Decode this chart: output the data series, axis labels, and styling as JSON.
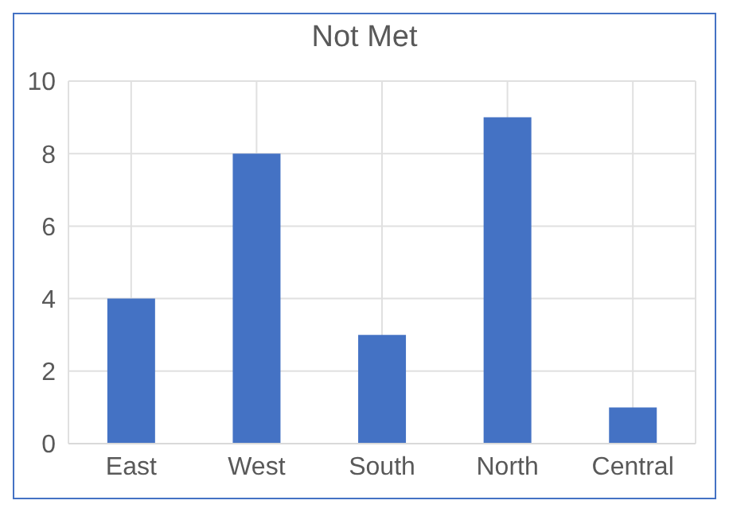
{
  "chart_data": {
    "type": "bar",
    "title": "Not Met",
    "categories": [
      "East",
      "West",
      "South",
      "North",
      "Central"
    ],
    "values": [
      4,
      8,
      3,
      9,
      1
    ],
    "color": "#4472c4",
    "ylim": [
      0,
      10
    ],
    "yticks": [
      0,
      2,
      4,
      6,
      8,
      10
    ],
    "grid": true
  }
}
